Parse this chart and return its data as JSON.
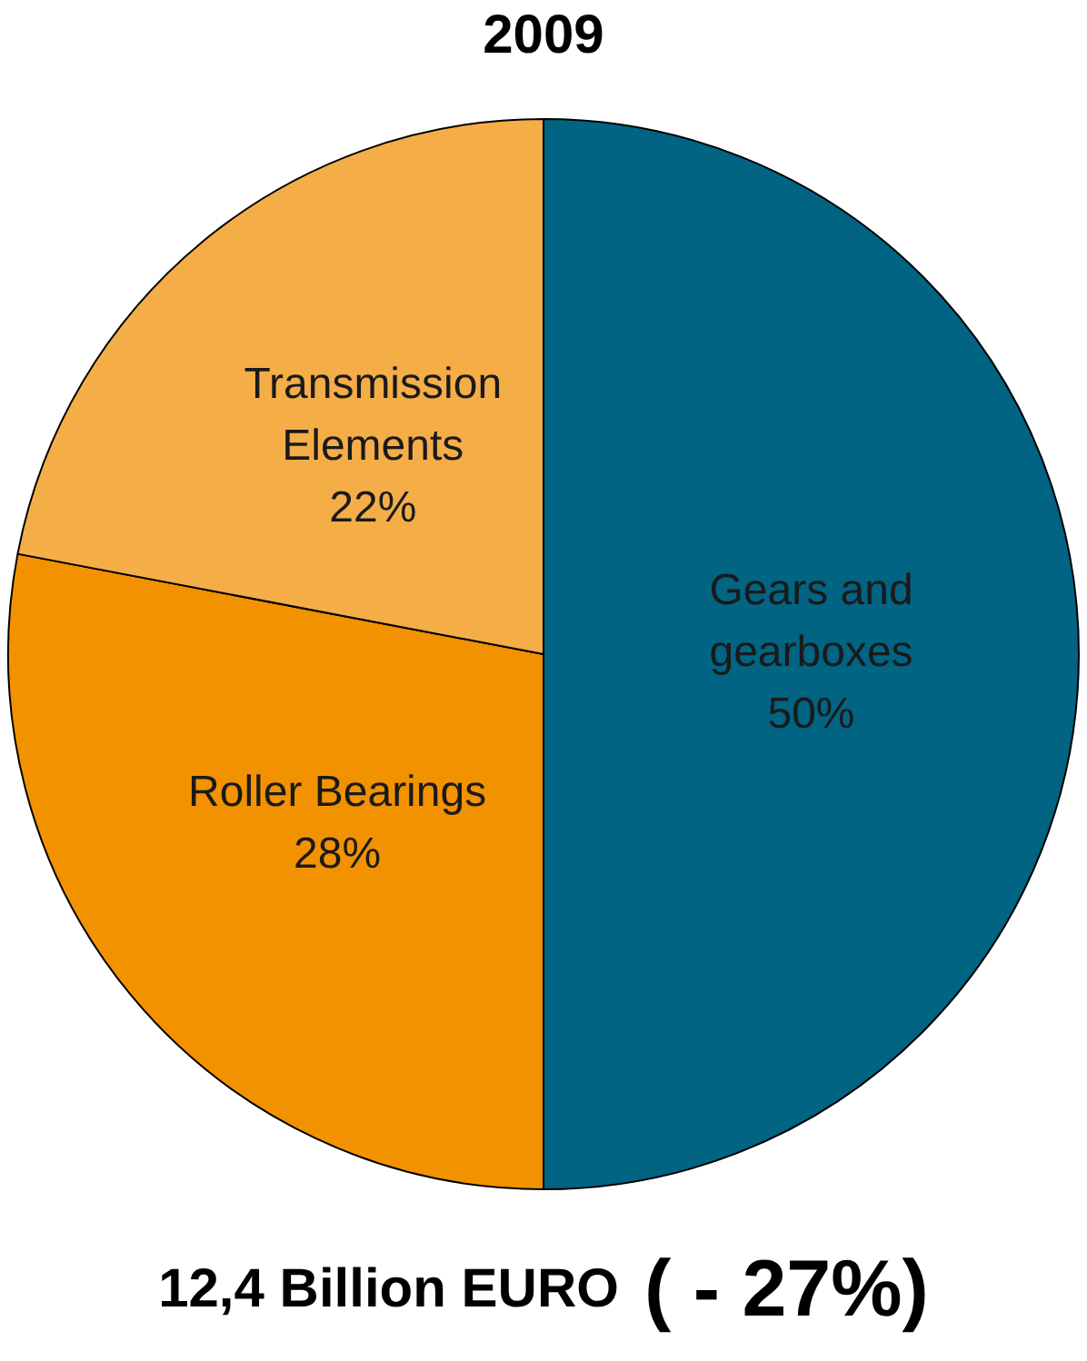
{
  "chart_data": {
    "type": "pie",
    "title": "2009",
    "categories": [
      "Gears and gearboxes",
      "Roller Bearings",
      "Transmission Elements"
    ],
    "values": [
      50,
      28,
      22
    ],
    "colors": [
      "#006482",
      "#f39200",
      "#f5ad48"
    ],
    "value_labels": [
      "50%",
      "28%",
      "22%"
    ],
    "legend": false,
    "annotations": [
      "12,4 Billion EURO",
      "( - 27%)"
    ]
  }
}
